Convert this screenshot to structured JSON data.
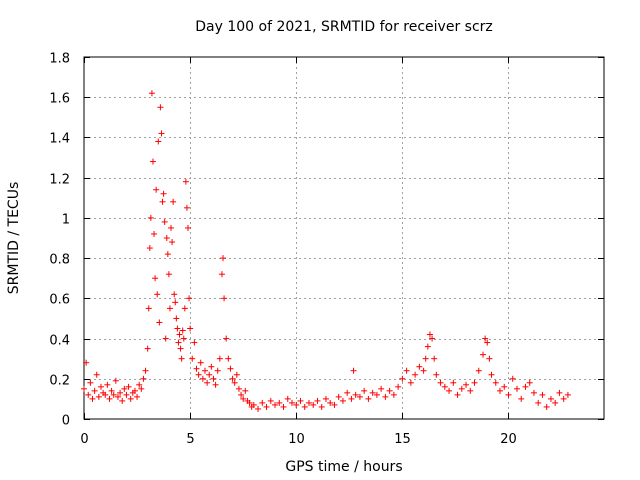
{
  "chart_data": {
    "type": "scatter",
    "title": "Day 100 of 2021, SRMTID for receiver scrz",
    "xlabel": "GPS time / hours",
    "ylabel": "SRMTID / TECUs",
    "xlim": [
      0,
      24.5
    ],
    "ylim": [
      0,
      1.8
    ],
    "xticks": [
      0,
      5,
      10,
      15,
      20
    ],
    "xtick_labels": [
      "0",
      "5",
      "10",
      "15",
      "20"
    ],
    "yticks": [
      0,
      0.2,
      0.4,
      0.6,
      0.8,
      1,
      1.2,
      1.4,
      1.6,
      1.8
    ],
    "ytick_labels": [
      "0",
      "0.2",
      "0.4",
      "0.6",
      "0.8",
      "1",
      "1.2",
      "1.4",
      "1.6",
      "1.8"
    ],
    "grid": true,
    "marker": "+",
    "color": "#ff0000",
    "series": [
      {
        "name": "SRMTID",
        "points": [
          [
            0.0,
            0.15
          ],
          [
            0.1,
            0.28
          ],
          [
            0.2,
            0.12
          ],
          [
            0.3,
            0.18
          ],
          [
            0.4,
            0.1
          ],
          [
            0.5,
            0.14
          ],
          [
            0.6,
            0.22
          ],
          [
            0.7,
            0.11
          ],
          [
            0.8,
            0.16
          ],
          [
            0.9,
            0.13
          ],
          [
            1.0,
            0.12
          ],
          [
            1.1,
            0.17
          ],
          [
            1.2,
            0.1
          ],
          [
            1.3,
            0.14
          ],
          [
            1.4,
            0.12
          ],
          [
            1.5,
            0.19
          ],
          [
            1.6,
            0.11
          ],
          [
            1.7,
            0.13
          ],
          [
            1.8,
            0.09
          ],
          [
            1.9,
            0.15
          ],
          [
            2.0,
            0.12
          ],
          [
            2.1,
            0.16
          ],
          [
            2.2,
            0.1
          ],
          [
            2.3,
            0.13
          ],
          [
            2.4,
            0.14
          ],
          [
            2.5,
            0.11
          ],
          [
            2.6,
            0.17
          ],
          [
            2.7,
            0.15
          ],
          [
            2.8,
            0.2
          ],
          [
            2.9,
            0.24
          ],
          [
            3.0,
            0.35
          ],
          [
            3.05,
            0.55
          ],
          [
            3.1,
            0.85
          ],
          [
            3.15,
            1.0
          ],
          [
            3.2,
            1.62
          ],
          [
            3.25,
            1.28
          ],
          [
            3.3,
            0.92
          ],
          [
            3.35,
            0.7
          ],
          [
            3.4,
            1.14
          ],
          [
            3.45,
            0.62
          ],
          [
            3.5,
            1.38
          ],
          [
            3.55,
            0.48
          ],
          [
            3.6,
            1.55
          ],
          [
            3.65,
            1.42
          ],
          [
            3.7,
            1.08
          ],
          [
            3.75,
            1.12
          ],
          [
            3.8,
            0.98
          ],
          [
            3.85,
            0.4
          ],
          [
            3.9,
            0.9
          ],
          [
            3.95,
            0.82
          ],
          [
            4.0,
            0.72
          ],
          [
            4.05,
            0.55
          ],
          [
            4.1,
            0.95
          ],
          [
            4.15,
            0.88
          ],
          [
            4.2,
            1.08
          ],
          [
            4.25,
            0.62
          ],
          [
            4.3,
            0.58
          ],
          [
            4.35,
            0.5
          ],
          [
            4.4,
            0.45
          ],
          [
            4.45,
            0.38
          ],
          [
            4.5,
            0.42
          ],
          [
            4.55,
            0.35
          ],
          [
            4.6,
            0.3
          ],
          [
            4.65,
            0.44
          ],
          [
            4.7,
            0.4
          ],
          [
            4.75,
            0.55
          ],
          [
            4.8,
            1.18
          ],
          [
            4.85,
            1.05
          ],
          [
            4.9,
            0.95
          ],
          [
            4.95,
            0.6
          ],
          [
            5.0,
            0.45
          ],
          [
            5.1,
            0.3
          ],
          [
            5.2,
            0.38
          ],
          [
            5.3,
            0.25
          ],
          [
            5.4,
            0.22
          ],
          [
            5.5,
            0.28
          ],
          [
            5.6,
            0.2
          ],
          [
            5.7,
            0.24
          ],
          [
            5.8,
            0.18
          ],
          [
            5.9,
            0.22
          ],
          [
            6.0,
            0.26
          ],
          [
            6.1,
            0.2
          ],
          [
            6.2,
            0.17
          ],
          [
            6.3,
            0.24
          ],
          [
            6.4,
            0.3
          ],
          [
            6.5,
            0.72
          ],
          [
            6.55,
            0.8
          ],
          [
            6.6,
            0.6
          ],
          [
            6.7,
            0.4
          ],
          [
            6.8,
            0.3
          ],
          [
            6.9,
            0.25
          ],
          [
            7.0,
            0.2
          ],
          [
            7.1,
            0.18
          ],
          [
            7.2,
            0.22
          ],
          [
            7.3,
            0.15
          ],
          [
            7.4,
            0.12
          ],
          [
            7.5,
            0.1
          ],
          [
            7.6,
            0.14
          ],
          [
            7.7,
            0.09
          ],
          [
            7.8,
            0.08
          ],
          [
            7.9,
            0.06
          ],
          [
            8.0,
            0.07
          ],
          [
            8.2,
            0.05
          ],
          [
            8.4,
            0.08
          ],
          [
            8.6,
            0.06
          ],
          [
            8.8,
            0.09
          ],
          [
            9.0,
            0.07
          ],
          [
            9.2,
            0.08
          ],
          [
            9.4,
            0.06
          ],
          [
            9.6,
            0.1
          ],
          [
            9.8,
            0.08
          ],
          [
            10.0,
            0.07
          ],
          [
            10.2,
            0.09
          ],
          [
            10.4,
            0.06
          ],
          [
            10.6,
            0.08
          ],
          [
            10.8,
            0.07
          ],
          [
            11.0,
            0.09
          ],
          [
            11.2,
            0.06
          ],
          [
            11.4,
            0.1
          ],
          [
            11.6,
            0.08
          ],
          [
            11.8,
            0.07
          ],
          [
            12.0,
            0.11
          ],
          [
            12.2,
            0.09
          ],
          [
            12.4,
            0.13
          ],
          [
            12.6,
            0.1
          ],
          [
            12.7,
            0.24
          ],
          [
            12.8,
            0.12
          ],
          [
            13.0,
            0.11
          ],
          [
            13.2,
            0.14
          ],
          [
            13.4,
            0.1
          ],
          [
            13.6,
            0.13
          ],
          [
            13.8,
            0.12
          ],
          [
            14.0,
            0.15
          ],
          [
            14.2,
            0.11
          ],
          [
            14.4,
            0.14
          ],
          [
            14.6,
            0.12
          ],
          [
            14.8,
            0.16
          ],
          [
            15.0,
            0.2
          ],
          [
            15.2,
            0.24
          ],
          [
            15.4,
            0.18
          ],
          [
            15.6,
            0.22
          ],
          [
            15.8,
            0.26
          ],
          [
            16.0,
            0.24
          ],
          [
            16.1,
            0.3
          ],
          [
            16.2,
            0.36
          ],
          [
            16.3,
            0.42
          ],
          [
            16.4,
            0.4
          ],
          [
            16.5,
            0.3
          ],
          [
            16.6,
            0.22
          ],
          [
            16.8,
            0.18
          ],
          [
            17.0,
            0.16
          ],
          [
            17.2,
            0.14
          ],
          [
            17.4,
            0.18
          ],
          [
            17.6,
            0.12
          ],
          [
            17.8,
            0.15
          ],
          [
            18.0,
            0.17
          ],
          [
            18.2,
            0.14
          ],
          [
            18.4,
            0.18
          ],
          [
            18.6,
            0.24
          ],
          [
            18.8,
            0.32
          ],
          [
            18.9,
            0.4
          ],
          [
            19.0,
            0.38
          ],
          [
            19.1,
            0.3
          ],
          [
            19.2,
            0.22
          ],
          [
            19.4,
            0.18
          ],
          [
            19.6,
            0.14
          ],
          [
            19.8,
            0.16
          ],
          [
            20.0,
            0.12
          ],
          [
            20.2,
            0.2
          ],
          [
            20.4,
            0.15
          ],
          [
            20.6,
            0.1
          ],
          [
            20.8,
            0.16
          ],
          [
            21.0,
            0.18
          ],
          [
            21.2,
            0.13
          ],
          [
            21.4,
            0.08
          ],
          [
            21.6,
            0.12
          ],
          [
            21.8,
            0.06
          ],
          [
            22.0,
            0.1
          ],
          [
            22.2,
            0.08
          ],
          [
            22.4,
            0.13
          ],
          [
            22.6,
            0.1
          ],
          [
            22.8,
            0.12
          ]
        ]
      }
    ]
  }
}
